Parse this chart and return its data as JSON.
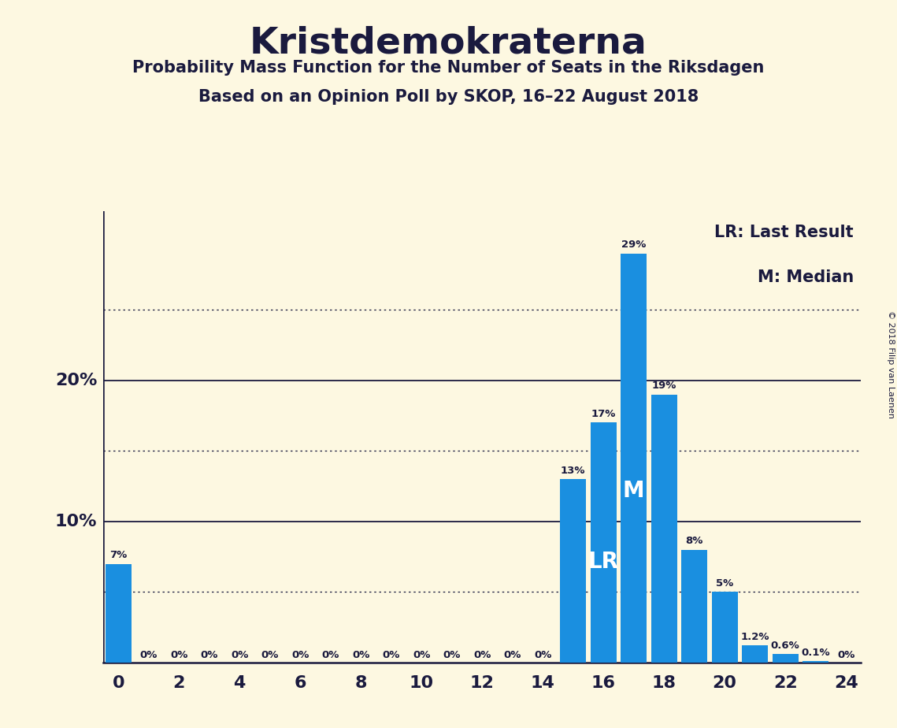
{
  "title": "Kristdemokraterna",
  "subtitle1": "Probability Mass Function for the Number of Seats in the Riksdagen",
  "subtitle2": "Based on an Opinion Poll by SKOP, 16–22 August 2018",
  "copyright": "© 2018 Filip van Laenen",
  "background_color": "#fdf8e1",
  "bar_color": "#1a8fe0",
  "seats": [
    0,
    1,
    2,
    3,
    4,
    5,
    6,
    7,
    8,
    9,
    10,
    11,
    12,
    13,
    14,
    15,
    16,
    17,
    18,
    19,
    20,
    21,
    22,
    23,
    24
  ],
  "probabilities": [
    7,
    0,
    0,
    0,
    0,
    0,
    0,
    0,
    0,
    0,
    0,
    0,
    0,
    0,
    0,
    13,
    17,
    29,
    19,
    8,
    5,
    1.2,
    0.6,
    0.1,
    0
  ],
  "last_result": 16,
  "median": 17,
  "solid_lines": [
    10,
    20
  ],
  "dotted_lines": [
    5,
    15,
    25
  ],
  "xlim": [
    -0.5,
    24.5
  ],
  "ylim": [
    0,
    32
  ],
  "legend_lr": "LR: Last Result",
  "legend_m": "M: Median",
  "bar_labels": {
    "0": "7%",
    "1": "0%",
    "2": "0%",
    "3": "0%",
    "4": "0%",
    "5": "0%",
    "6": "0%",
    "7": "0%",
    "8": "0%",
    "9": "0%",
    "10": "0%",
    "11": "0%",
    "12": "0%",
    "13": "0%",
    "14": "0%",
    "15": "13%",
    "16": "17%",
    "17": "29%",
    "18": "19%",
    "19": "8%",
    "20": "5%",
    "21": "1.2%",
    "22": "0.6%",
    "23": "0.1%",
    "24": "0%"
  },
  "text_color": "#1a1a3e",
  "ytick_positions": [
    10,
    20
  ],
  "ytick_labels": [
    "10%",
    "20%"
  ]
}
